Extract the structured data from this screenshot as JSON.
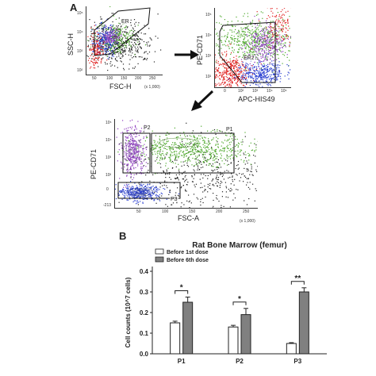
{
  "panel_a": {
    "label": "A",
    "plot1": {
      "xlabel": "FSC-H",
      "ylabel": "SSC-H",
      "x_ticks": [
        "50",
        "100",
        "150",
        "200",
        "250"
      ],
      "y_ticks": [
        "10²",
        "10³",
        "10⁴",
        "10⁵"
      ],
      "x_unit": "(x 1,000)",
      "gate": "ER"
    },
    "plot2": {
      "xlabel": "APC-HIS49",
      "ylabel": "PE-CD71",
      "x_ticks": [
        "0",
        "10²",
        "10³",
        "10⁴",
        "10⁵"
      ],
      "y_ticks": [
        "10²",
        "10³",
        "10⁴",
        "10⁵"
      ],
      "gate": "ER2"
    },
    "plot3": {
      "xlabel": "FSC-A",
      "ylabel": "PE-CD71",
      "x_ticks": [
        "50",
        "100",
        "150",
        "200",
        "250"
      ],
      "y_ticks": [
        "-213",
        "0",
        "10²",
        "10³",
        "10⁴",
        "10⁵"
      ],
      "x_unit": "(x 1,000)",
      "gates": [
        "P1",
        "P2",
        "P3"
      ]
    },
    "colors": {
      "red": "#e02020",
      "green": "#4ca82a",
      "purple": "#9040c0",
      "blue": "#2a3fd0",
      "black": "#222222"
    }
  },
  "panel_b": {
    "label": "B",
    "chart_data": {
      "type": "bar",
      "title": "Rat Bone Marrow (femur)",
      "ylabel": "Cell counts (10^7 cells)",
      "categories": [
        "P1",
        "P2",
        "P3"
      ],
      "series": [
        {
          "name": "Before 1st dose",
          "values": [
            0.15,
            0.13,
            0.05
          ],
          "errors": [
            0.008,
            0.008,
            0.004
          ],
          "color": "#ffffff"
        },
        {
          "name": "Before 6th dose",
          "values": [
            0.25,
            0.19,
            0.3
          ],
          "errors": [
            0.025,
            0.03,
            0.02
          ],
          "color": "#808080"
        }
      ],
      "ylim": [
        0,
        0.4
      ],
      "yticks": [
        "0.0",
        "0.1",
        "0.2",
        "0.3",
        "0.4"
      ],
      "significance": [
        "*",
        "*",
        "**"
      ],
      "legend": "top-left"
    }
  }
}
